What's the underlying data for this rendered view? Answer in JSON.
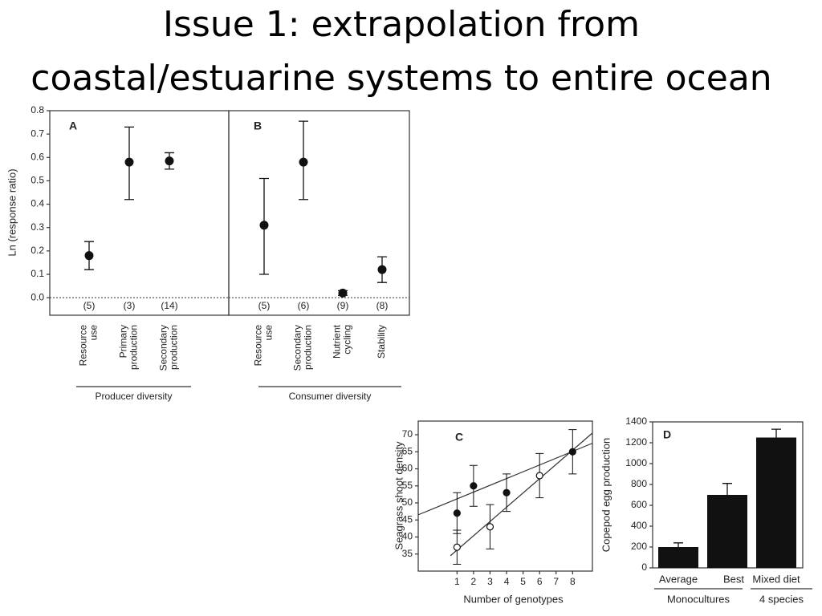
{
  "title": [
    "Issue 1: extrapolation from",
    "coastal/estuarine systems to entire ocean"
  ],
  "chart_data": [
    {
      "type": "errorbar",
      "panel": "A",
      "ylabel": "Ln (response ratio)",
      "categories": [
        [
          "Resource",
          "use"
        ],
        [
          "Primary",
          "production"
        ],
        [
          "Secondary",
          "production"
        ]
      ],
      "values": [
        0.18,
        0.58,
        0.585
      ],
      "lower": [
        0.12,
        0.42,
        0.55
      ],
      "upper": [
        0.24,
        0.73,
        0.62
      ],
      "counts": [
        "(5)",
        "(3)",
        "(14)"
      ],
      "group": "Producer diversity",
      "ylim": [
        -0.075,
        0.8
      ],
      "yticks": [
        {
          "value": 0,
          "label": "0.0"
        },
        0.1,
        0.2,
        0.3,
        0.4,
        0.5,
        0.6,
        0.7,
        0.8
      ],
      "hline": 0,
      "color": "#111111"
    },
    {
      "type": "errorbar",
      "panel": "B",
      "categories": [
        [
          "Resource",
          "use"
        ],
        [
          "Secondary",
          "production"
        ],
        [
          "Nutrient",
          "cycling"
        ],
        [
          "Stability"
        ]
      ],
      "values": [
        0.31,
        0.58,
        0.02,
        0.12
      ],
      "lower": [
        0.1,
        0.42,
        0.01,
        0.065
      ],
      "upper": [
        0.51,
        0.755,
        0.03,
        0.175
      ],
      "counts": [
        "(5)",
        "(6)",
        "(9)",
        "(8)"
      ],
      "group": "Consumer diversity",
      "ylim": [
        -0.075,
        0.8
      ],
      "hline": 0,
      "color": "#111111"
    },
    {
      "type": "scatter",
      "panel": "C",
      "ylabel": "Seagrass shoot density",
      "xlabel": "Number of genotypes",
      "xlim": [
        -1.35,
        9.2
      ],
      "xticks": [
        1,
        2,
        3,
        4,
        5,
        6,
        7,
        8
      ],
      "ylim": [
        30,
        74
      ],
      "yticks": [
        35,
        40,
        45,
        50,
        55,
        60,
        65,
        70
      ],
      "series": [
        {
          "color": "#111111",
          "marker_fill": "#111111",
          "x": [
            1,
            2,
            4,
            8
          ],
          "values": [
            47,
            55,
            53,
            65
          ],
          "errors": [
            6,
            6,
            5.5,
            6.5
          ]
        },
        {
          "color": "#111111",
          "marker_fill": "#ffffff",
          "x": [
            1,
            3,
            6
          ],
          "values": [
            37,
            43,
            58
          ],
          "errors": [
            5,
            6.5,
            6.5
          ]
        }
      ],
      "trend_lines": [
        {
          "x": [
            -1.35,
            9.2
          ],
          "values": [
            46.5,
            67.5
          ]
        },
        {
          "x": [
            0.6,
            9.2
          ],
          "values": [
            34.5,
            70.5
          ]
        }
      ]
    },
    {
      "type": "bar",
      "panel": "D",
      "ylabel": "Copepod egg production",
      "categories": [
        "Average",
        "Best",
        "Mixed diet"
      ],
      "values": [
        200,
        700,
        1250
      ],
      "errors": [
        40,
        110,
        80
      ],
      "group_labels": [
        "Monocultures",
        "4 species"
      ],
      "ylim": [
        0,
        1400
      ],
      "yticks": [
        0,
        200,
        400,
        600,
        800,
        1000,
        1200,
        1400
      ],
      "color": "#111111"
    }
  ]
}
